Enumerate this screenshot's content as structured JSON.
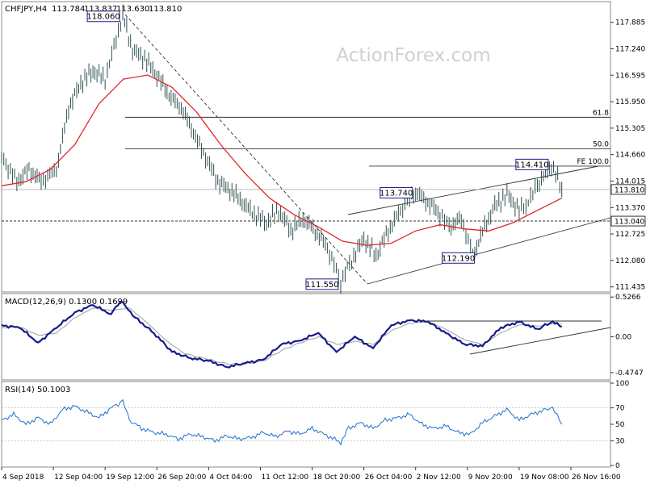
{
  "chart_data": {
    "type": "ohlc",
    "header": {
      "symbol": "CHFJPY,H4",
      "open": "113.784",
      "high": "113.837",
      "low": "113.630",
      "close": "113.810"
    },
    "watermark": "ActionForex.com",
    "price_panel": {
      "ylim": [
        111.35,
        118.35
      ],
      "y_ticks": [
        "117.885",
        "117.240",
        "116.595",
        "115.950",
        "115.305",
        "114.660",
        "114.015",
        "113.370",
        "112.725",
        "112.080",
        "111.435"
      ],
      "current_price": "113.810",
      "support_level": "113.040",
      "annotations": [
        {
          "text": "118.060",
          "x": 19.9,
          "y": 118.06
        },
        {
          "text": "111.550",
          "x": 55.7,
          "y": 111.55
        },
        {
          "text": "113.740",
          "x": 68.0,
          "y": 113.74
        },
        {
          "text": "112.190",
          "x": 77.4,
          "y": 112.19
        },
        {
          "text": "114.410",
          "x": 90.3,
          "y": 114.41
        }
      ],
      "fib_levels": [
        {
          "text": "61.8",
          "price": 115.57
        },
        {
          "text": "50.0",
          "price": 114.8
        },
        {
          "text": "FE 100.0",
          "price": 114.38
        }
      ],
      "price_path": [
        [
          0,
          114.6
        ],
        [
          2.5,
          114.0
        ],
        [
          4.5,
          114.3
        ],
        [
          6.5,
          114.0
        ],
        [
          9,
          114.3
        ],
        [
          11,
          115.8
        ],
        [
          13,
          116.4
        ],
        [
          15,
          116.7
        ],
        [
          17,
          116.5
        ],
        [
          19.9,
          118.06
        ],
        [
          21.5,
          117.2
        ],
        [
          23.5,
          117.0
        ],
        [
          25.5,
          116.6
        ],
        [
          27.5,
          116.1
        ],
        [
          29.5,
          115.8
        ],
        [
          31.5,
          115.2
        ],
        [
          33.5,
          114.6
        ],
        [
          35.5,
          114.0
        ],
        [
          37.5,
          113.8
        ],
        [
          39.5,
          113.5
        ],
        [
          41.5,
          113.2
        ],
        [
          43.5,
          113.0
        ],
        [
          45.5,
          113.3
        ],
        [
          47.5,
          112.8
        ],
        [
          49.5,
          113.1
        ],
        [
          51.5,
          112.8
        ],
        [
          53.5,
          112.4
        ],
        [
          55.7,
          111.55
        ],
        [
          57.5,
          112.1
        ],
        [
          59.5,
          112.6
        ],
        [
          61.5,
          112.2
        ],
        [
          63.5,
          112.8
        ],
        [
          65.5,
          113.3
        ],
        [
          67,
          113.6
        ],
        [
          68,
          113.74
        ],
        [
          70,
          113.5
        ],
        [
          72,
          113.2
        ],
        [
          73.5,
          112.9
        ],
        [
          75.5,
          113.1
        ],
        [
          77.4,
          112.19
        ],
        [
          79,
          112.8
        ],
        [
          81,
          113.4
        ],
        [
          83,
          113.7
        ],
        [
          85,
          113.3
        ],
        [
          86.5,
          113.5
        ],
        [
          88,
          113.9
        ],
        [
          90.3,
          114.41
        ],
        [
          91,
          114.2
        ],
        [
          92,
          113.81
        ]
      ],
      "ema_path": [
        [
          0,
          113.9
        ],
        [
          4,
          114.0
        ],
        [
          8,
          114.3
        ],
        [
          12,
          114.9
        ],
        [
          16,
          115.9
        ],
        [
          20,
          116.5
        ],
        [
          24,
          116.6
        ],
        [
          28,
          116.3
        ],
        [
          32,
          115.7
        ],
        [
          36,
          114.9
        ],
        [
          40,
          114.2
        ],
        [
          44,
          113.6
        ],
        [
          48,
          113.2
        ],
        [
          52,
          112.9
        ],
        [
          56,
          112.55
        ],
        [
          60,
          112.45
        ],
        [
          64,
          112.5
        ],
        [
          68,
          112.8
        ],
        [
          72,
          112.95
        ],
        [
          76,
          112.85
        ],
        [
          80,
          112.8
        ],
        [
          84,
          113.0
        ],
        [
          88,
          113.3
        ],
        [
          92,
          113.6
        ]
      ]
    },
    "macd_panel": {
      "label": "MACD(12,26,9) 0.1300 0.1699",
      "ylim": [
        -0.55,
        0.55
      ],
      "y_ticks": [
        "0.5266",
        "0.00",
        "-0.4747"
      ],
      "macd_path": [
        [
          0,
          0.15
        ],
        [
          3,
          0.12
        ],
        [
          6,
          -0.08
        ],
        [
          9,
          0.12
        ],
        [
          12,
          0.32
        ],
        [
          15,
          0.42
        ],
        [
          18,
          0.3
        ],
        [
          19.5,
          0.48
        ],
        [
          22,
          0.25
        ],
        [
          25,
          0.05
        ],
        [
          28,
          -0.2
        ],
        [
          31,
          -0.28
        ],
        [
          34,
          -0.32
        ],
        [
          37,
          -0.4
        ],
        [
          40,
          -0.35
        ],
        [
          43,
          -0.3
        ],
        [
          46,
          -0.1
        ],
        [
          49,
          -0.05
        ],
        [
          52,
          0.05
        ],
        [
          55,
          -0.2
        ],
        [
          58,
          0.0
        ],
        [
          61,
          -0.15
        ],
        [
          64,
          0.15
        ],
        [
          67,
          0.22
        ],
        [
          70,
          0.2
        ],
        [
          73,
          0.05
        ],
        [
          76,
          -0.1
        ],
        [
          79,
          -0.12
        ],
        [
          82,
          0.12
        ],
        [
          85,
          0.2
        ],
        [
          88,
          0.1
        ],
        [
          90.5,
          0.2
        ],
        [
          92,
          0.13
        ]
      ],
      "signal_path": [
        [
          0,
          0.12
        ],
        [
          3,
          0.13
        ],
        [
          6,
          0.02
        ],
        [
          9,
          0.05
        ],
        [
          12,
          0.25
        ],
        [
          15,
          0.38
        ],
        [
          18,
          0.35
        ],
        [
          21,
          0.38
        ],
        [
          24,
          0.18
        ],
        [
          27,
          -0.05
        ],
        [
          30,
          -0.22
        ],
        [
          34,
          -0.3
        ],
        [
          37,
          -0.36
        ],
        [
          40,
          -0.36
        ],
        [
          43,
          -0.32
        ],
        [
          46,
          -0.18
        ],
        [
          49,
          -0.08
        ],
        [
          52,
          0.0
        ],
        [
          55,
          -0.1
        ],
        [
          58,
          -0.06
        ],
        [
          61,
          -0.1
        ],
        [
          64,
          0.08
        ],
        [
          67,
          0.18
        ],
        [
          70,
          0.2
        ],
        [
          73,
          0.1
        ],
        [
          76,
          -0.04
        ],
        [
          79,
          -0.1
        ],
        [
          82,
          0.05
        ],
        [
          85,
          0.16
        ],
        [
          88,
          0.14
        ],
        [
          90.5,
          0.17
        ],
        [
          92,
          0.17
        ]
      ]
    },
    "rsi_panel": {
      "label": "RSI(14) 50.1003",
      "ylim": [
        0,
        100
      ],
      "y_ticks": [
        "100",
        "70",
        "50",
        "30",
        "0"
      ],
      "rsi_path": [
        [
          0,
          55
        ],
        [
          2,
          62
        ],
        [
          4,
          50
        ],
        [
          6,
          58
        ],
        [
          8,
          50
        ],
        [
          10,
          68
        ],
        [
          12,
          72
        ],
        [
          14,
          65
        ],
        [
          16,
          58
        ],
        [
          18,
          70
        ],
        [
          19.9,
          78
        ],
        [
          21,
          55
        ],
        [
          23,
          45
        ],
        [
          25,
          40
        ],
        [
          27,
          38
        ],
        [
          29,
          32
        ],
        [
          31,
          38
        ],
        [
          33,
          35
        ],
        [
          35,
          30
        ],
        [
          37,
          36
        ],
        [
          39,
          32
        ],
        [
          41,
          34
        ],
        [
          43,
          40
        ],
        [
          45,
          35
        ],
        [
          47,
          42
        ],
        [
          49,
          38
        ],
        [
          51,
          45
        ],
        [
          53,
          38
        ],
        [
          55.7,
          28
        ],
        [
          57,
          45
        ],
        [
          59,
          52
        ],
        [
          61,
          45
        ],
        [
          63,
          55
        ],
        [
          65,
          58
        ],
        [
          67,
          62
        ],
        [
          69,
          50
        ],
        [
          71,
          45
        ],
        [
          73,
          48
        ],
        [
          75,
          40
        ],
        [
          77,
          38
        ],
        [
          79,
          52
        ],
        [
          81,
          60
        ],
        [
          83,
          68
        ],
        [
          85,
          55
        ],
        [
          87,
          62
        ],
        [
          89,
          67
        ],
        [
          90.5,
          70
        ],
        [
          92,
          50
        ]
      ]
    },
    "x_tick_labels": [
      "4 Sep 2018",
      "12 Sep 04:00",
      "19 Sep 12:00",
      "26 Sep 20:00",
      "4 Oct 04:00",
      "11 Oct 12:00",
      "18 Oct 20:00",
      "26 Oct 04:00",
      "2 Nov 12:00",
      "9 Nov 20:00",
      "19 Nov 08:00",
      "26 Nov 16:00"
    ],
    "colors": {
      "price": "#2f4f4f",
      "ema": "#e0262d",
      "macd": "#1a1a8c",
      "signal": "#a0a0a0",
      "rsi": "#1e6fd0",
      "label_box": "#1a1a8c"
    }
  }
}
